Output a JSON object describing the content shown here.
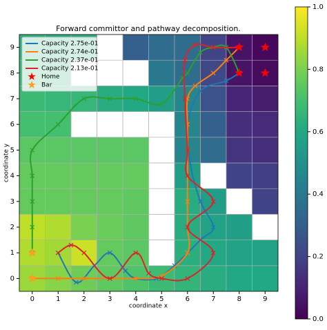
{
  "chart_data": {
    "type": "heatmap",
    "title": "Forward committor and pathway decomposition.",
    "xlabel": "coordinate x",
    "ylabel": "coordinate y",
    "colormap": "viridis",
    "xlim": [
      -0.5,
      9.5
    ],
    "ylim": [
      -0.5,
      9.5
    ],
    "xticks": [
      0,
      1,
      2,
      3,
      4,
      5,
      6,
      7,
      8,
      9
    ],
    "yticks": [
      0,
      1,
      2,
      3,
      4,
      5,
      6,
      7,
      8,
      9
    ],
    "clim": [
      0,
      1
    ],
    "cticks": [
      {
        "value": 0,
        "label": "0.0"
      },
      0.2,
      0.4,
      0.6,
      0.8,
      {
        "value": 1,
        "label": "1.0"
      }
    ],
    "z": [
      [
        0.85,
        0.82,
        0.78,
        0.75,
        0.72,
        0.68,
        0.65,
        0.62,
        0.6,
        0.6
      ],
      [
        0.88,
        0.86,
        0.92,
        0.76,
        0.74,
        null,
        0.63,
        0.6,
        0.58,
        0.58
      ],
      [
        0.9,
        0.88,
        0.8,
        0.77,
        0.75,
        null,
        0.62,
        0.58,
        0.56,
        null
      ],
      [
        0.76,
        0.76,
        0.76,
        0.76,
        0.75,
        null,
        0.62,
        0.55,
        null,
        0.2
      ],
      [
        0.76,
        0.76,
        0.76,
        0.76,
        0.76,
        null,
        0.55,
        null,
        0.2,
        0.18
      ],
      [
        0.74,
        0.74,
        0.74,
        0.74,
        0.74,
        null,
        0.45,
        0.35,
        0.15,
        0.13
      ],
      [
        0.7,
        0.7,
        null,
        null,
        null,
        null,
        0.45,
        0.3,
        0.13,
        0.12
      ],
      [
        0.68,
        0.66,
        0.66,
        0.62,
        0.6,
        0.55,
        0.45,
        0.25,
        0.1,
        0.08
      ],
      [
        0.66,
        0.64,
        null,
        null,
        null,
        0.4,
        0.35,
        0.22,
        0.05,
        0.03
      ],
      [
        0.64,
        0.62,
        0.62,
        null,
        0.3,
        0.35,
        0.35,
        0.2,
        0.05,
        0.02
      ]
    ],
    "series": [
      {
        "name": "Capacity 2.75e-01",
        "color": "#1f77b4",
        "x": [
          1,
          1.7,
          2.4,
          3,
          3.6,
          4,
          4.8,
          5.5,
          6.5,
          7,
          6.5,
          6.1,
          6,
          6.5,
          7.5,
          8
        ],
        "values": [
          1,
          -0.15,
          0.5,
          1,
          0.3,
          0,
          0,
          0.5,
          1.5,
          2,
          3,
          4.5,
          6,
          7.3,
          7.7,
          8
        ]
      },
      {
        "name": "Capacity 2.74e-01",
        "color": "#ff7f0e",
        "x": [
          0,
          1,
          2,
          3,
          4,
          5,
          6,
          6,
          6,
          6,
          6,
          6,
          6,
          6.3,
          7,
          7.5,
          8
        ],
        "values": [
          0,
          0,
          0,
          0,
          0,
          0.1,
          1,
          2,
          3,
          4,
          5,
          6,
          7,
          7.5,
          8,
          8.5,
          9
        ]
      },
      {
        "name": "Capacity 2.37e-01",
        "color": "#2ca02c",
        "x": [
          0,
          0,
          0,
          0,
          0,
          1,
          2,
          3,
          4,
          5,
          5.8,
          6,
          6.5,
          7,
          7.5,
          8
        ],
        "values": [
          1,
          2,
          3,
          4,
          5,
          6,
          7,
          7,
          7,
          6.8,
          7.8,
          8,
          8.8,
          9,
          9,
          8
        ]
      },
      {
        "name": "Capacity 2.13e-01",
        "color": "#d62728",
        "x": [
          1,
          1.5,
          2,
          3,
          4,
          4.5,
          5,
          6,
          7,
          6,
          7,
          6,
          6,
          5.9,
          5.9,
          6.3,
          7,
          8
        ],
        "values": [
          1,
          1.3,
          1,
          0,
          1,
          0.2,
          0,
          0,
          1,
          2,
          3,
          4,
          5,
          7,
          8.5,
          9.1,
          9,
          9
        ]
      }
    ],
    "markers": [
      {
        "name": "Home",
        "color": "#ff0000",
        "x": [
          8,
          9,
          8,
          9
        ],
        "values": [
          9,
          9,
          8,
          8
        ]
      },
      {
        "name": "Bar",
        "color": "#ff9f1c",
        "x": [
          0,
          0
        ],
        "values": [
          0,
          1
        ]
      }
    ],
    "legend": "upper left"
  }
}
